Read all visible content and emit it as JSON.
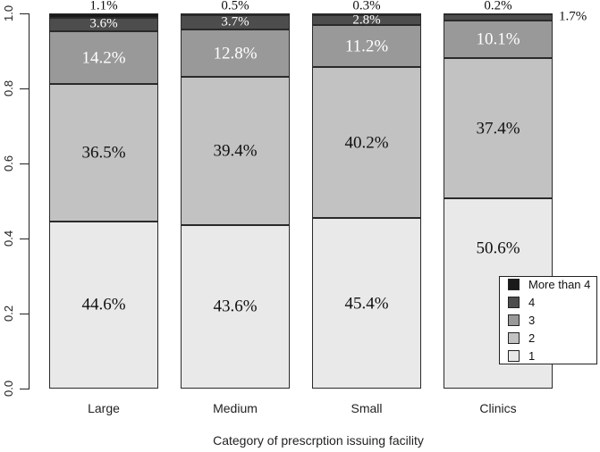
{
  "chart_data": {
    "type": "bar",
    "variant": "stacked-100-percent",
    "title": "",
    "xlabel": "Category of prescrption issuing facility",
    "ylabel": "",
    "ylim": [
      0,
      1
    ],
    "yticks": [
      0,
      0.2,
      0.4,
      0.6,
      0.8,
      1
    ],
    "grid": false,
    "categories": [
      "Large",
      "Medium",
      "Small",
      "Clinics"
    ],
    "series": [
      {
        "name": "1",
        "color": "#e9e9e9",
        "text_color": "#111111",
        "values_pct": [
          44.6,
          43.6,
          45.4,
          50.6
        ],
        "label_dy": [
          0,
          0,
          0,
          -51
        ]
      },
      {
        "name": "2",
        "color": "#c2c2c2",
        "text_color": "#111111",
        "values_pct": [
          36.5,
          39.4,
          40.2,
          37.4
        ]
      },
      {
        "name": "3",
        "color": "#999999",
        "text_color": "#ffffff",
        "values_pct": [
          14.2,
          12.8,
          11.2,
          10.1
        ]
      },
      {
        "name": "4",
        "color": "#4d4d4d",
        "text_color": "#ffffff",
        "values_pct": [
          3.6,
          3.7,
          2.8,
          1.7
        ],
        "label_outside_right": [
          false,
          false,
          false,
          true
        ]
      },
      {
        "name": "More than 4",
        "color": "#1a1a1a",
        "text_color": "#111111",
        "values_pct": [
          1.1,
          0.5,
          0.3,
          0.2
        ],
        "label_placement": "above"
      }
    ],
    "legend": {
      "position": "inside-right",
      "entries": [
        "More than 4",
        "4",
        "3",
        "2",
        "1"
      ]
    }
  },
  "colors": {
    "background": "#ffffff",
    "segment_border": "#2a2a2a",
    "axis": "#222222"
  }
}
